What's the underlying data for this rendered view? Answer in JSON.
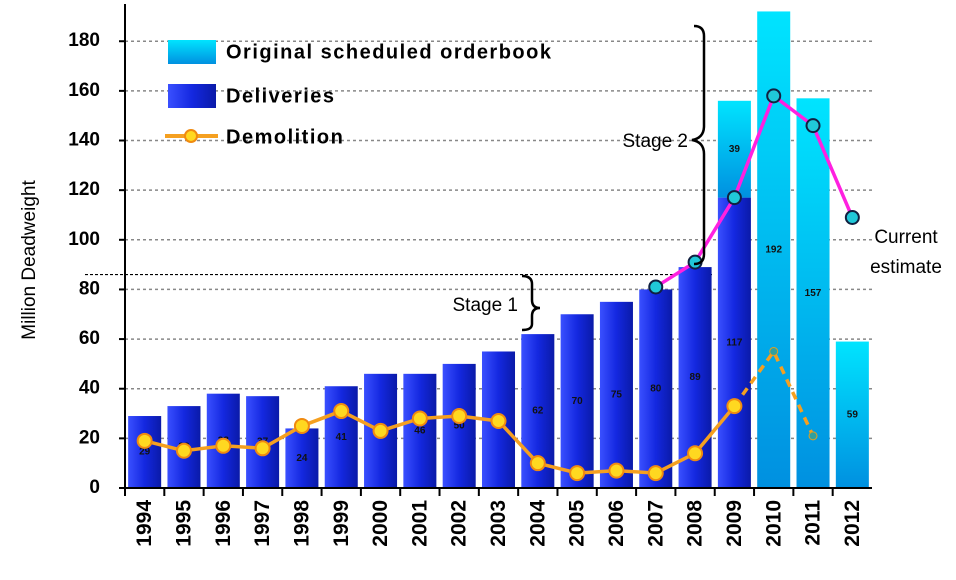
{
  "chart_data": {
    "type": "bar",
    "ylabel": "Million Deadweight",
    "categories": [
      "1994",
      "1995",
      "1996",
      "1997",
      "1998",
      "1999",
      "2000",
      "2001",
      "2002",
      "2003",
      "2004",
      "2005",
      "2006",
      "2007",
      "2008",
      "2009",
      "2010",
      "2011",
      "2012"
    ],
    "series": [
      {
        "name": "Deliveries",
        "color": "#1428e0",
        "values": [
          29,
          33,
          38,
          37,
          24,
          41,
          46,
          46,
          50,
          55,
          62,
          70,
          75,
          80,
          89,
          117,
          null,
          null,
          null
        ]
      },
      {
        "name": "Original scheduled orderbook",
        "color": "#00c0f0",
        "values": [
          null,
          null,
          null,
          null,
          null,
          null,
          null,
          null,
          null,
          null,
          null,
          null,
          null,
          null,
          null,
          39,
          192,
          157,
          59
        ]
      },
      {
        "name": "Demolition",
        "type": "line",
        "color": "#f5a020",
        "dashed_from": "2009",
        "values": [
          19,
          15,
          17,
          16,
          25,
          31,
          23,
          28,
          29,
          27,
          10,
          6,
          7,
          6,
          14,
          33,
          55,
          21,
          null
        ]
      },
      {
        "type": "line",
        "color": "#ff20e0",
        "values": [
          null,
          null,
          null,
          null,
          null,
          null,
          null,
          null,
          null,
          null,
          null,
          null,
          null,
          81,
          91,
          117,
          158,
          146,
          109
        ]
      }
    ],
    "reference_line": 86,
    "annotations": [
      "Stage 1",
      "Stage 2",
      "Current",
      "estimate"
    ],
    "ylim": [
      0,
      195
    ],
    "yticks": [
      0,
      20,
      40,
      60,
      80,
      100,
      120,
      140,
      160,
      180
    ],
    "grid": true
  }
}
